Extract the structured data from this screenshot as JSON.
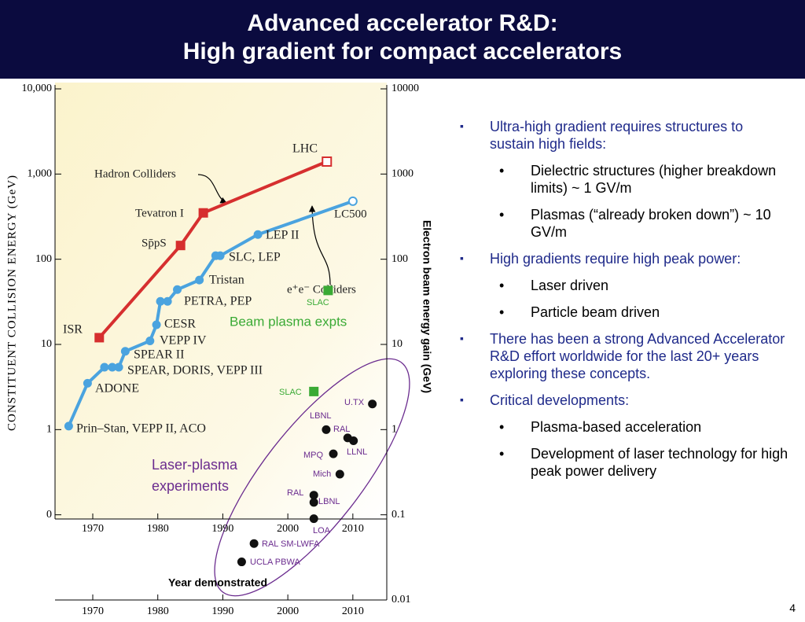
{
  "title": [
    "Advanced accelerator R&D:",
    "High gradient for compact accelerators"
  ],
  "chart": {
    "type": "scatter",
    "ylabel": "CONSTITUENT COLLISION ENERGY (GeV)",
    "y2label": "Electron beam energy gain (GeV)",
    "xlabel": "Year demonstrated",
    "log_scale": true,
    "xlim": [
      1965,
      2015
    ],
    "xticks": [
      1970,
      1980,
      1990,
      2000,
      2010
    ],
    "ylim": [
      0.01,
      10000
    ],
    "yticks": [
      {
        "value": 10000,
        "label": "10,000"
      },
      {
        "value": 1000,
        "label": "1,000"
      },
      100,
      10,
      1,
      {
        "value": 0.1,
        "label": "0"
      }
    ],
    "y2lim": [
      0.01,
      10000
    ],
    "y2ticks": [
      10000,
      1000,
      100,
      10,
      1,
      0.1,
      0.01
    ],
    "series": [
      {
        "name": "Hadron Colliders",
        "color": "#d62f2f",
        "marker": "square",
        "line": true,
        "open_last": true,
        "x": [
          1971,
          1983.5,
          1987,
          2006
        ],
        "values": [
          12,
          145,
          350,
          1400
        ],
        "labels": [
          "ISR",
          "Sp̄pS",
          "Tevatron  I",
          "LHC"
        ]
      },
      {
        "name": "e⁺e⁻ Colliders",
        "color": "#4aa3df",
        "marker": "circle",
        "line": true,
        "open_last": true,
        "x": [
          1966.3,
          1969.2,
          1971.8,
          1973,
          1974,
          1975,
          1978.8,
          1979.8,
          1980.4,
          1981.5,
          1983,
          1986.4,
          1988.9,
          1989.6,
          1995.4,
          2010
        ],
        "values": [
          1.1,
          3.5,
          5.4,
          5.4,
          5.4,
          8.3,
          11,
          17,
          32,
          32,
          44,
          57,
          110,
          110,
          195,
          480
        ],
        "labels": [
          "Prin–Stan, VEPP II, ACO",
          "ADONE",
          "SPEAR, DORIS, VEPP III",
          null,
          null,
          "SPEAR II",
          "VEPP IV",
          "CESR",
          "PETRA, PEP",
          null,
          null,
          "Tristan",
          "SLC, LEP",
          null,
          "LEP II",
          "LC500"
        ]
      },
      {
        "name": "Beam plasma expts",
        "color": "#3aaa35",
        "marker": "square",
        "line": false,
        "x": [
          2006.2,
          2004
        ],
        "values": [
          43,
          2.8
        ],
        "labels": [
          "SLAC",
          "SLAC"
        ]
      },
      {
        "name": "Laser-plasma experiments",
        "color": "#111111",
        "marker": "circle",
        "line": false,
        "x": [
          2013,
          2005.9,
          2009.2,
          2010.1,
          2007,
          2008,
          2004,
          2004,
          2004,
          1994.8,
          1992.9
        ],
        "values": [
          2,
          1,
          0.8,
          0.74,
          0.52,
          0.3,
          0.17,
          0.14,
          0.09,
          0.046,
          0.028
        ],
        "labels": [
          "U.TX",
          "LBNL",
          "RAL",
          "LLNL",
          "MPQ",
          "Mich",
          "RAL",
          "LBNL",
          "LOA",
          "RAL SM-LWFA",
          "UCLA PBWA"
        ]
      }
    ]
  },
  "bullets": [
    {
      "text": "Ultra-high gradient requires structures to sustain high fields:",
      "sub": [
        "Dielectric structures (higher breakdown limits) ~ 1 GV/m",
        "Plasmas (“already broken down”) ~ 10 GV/m"
      ]
    },
    {
      "text": "High gradients require high peak power:",
      "sub": [
        "Laser driven",
        "Particle beam driven"
      ]
    },
    {
      "text": "There has been a strong Advanced Accelerator R&D effort worldwide for the last 20+ years exploring these concepts.",
      "sub": []
    },
    {
      "text": "Critical developments:",
      "sub": [
        "Plasma-based acceleration",
        "Development of laser technology for high peak power delivery"
      ]
    }
  ],
  "page_number": "4"
}
